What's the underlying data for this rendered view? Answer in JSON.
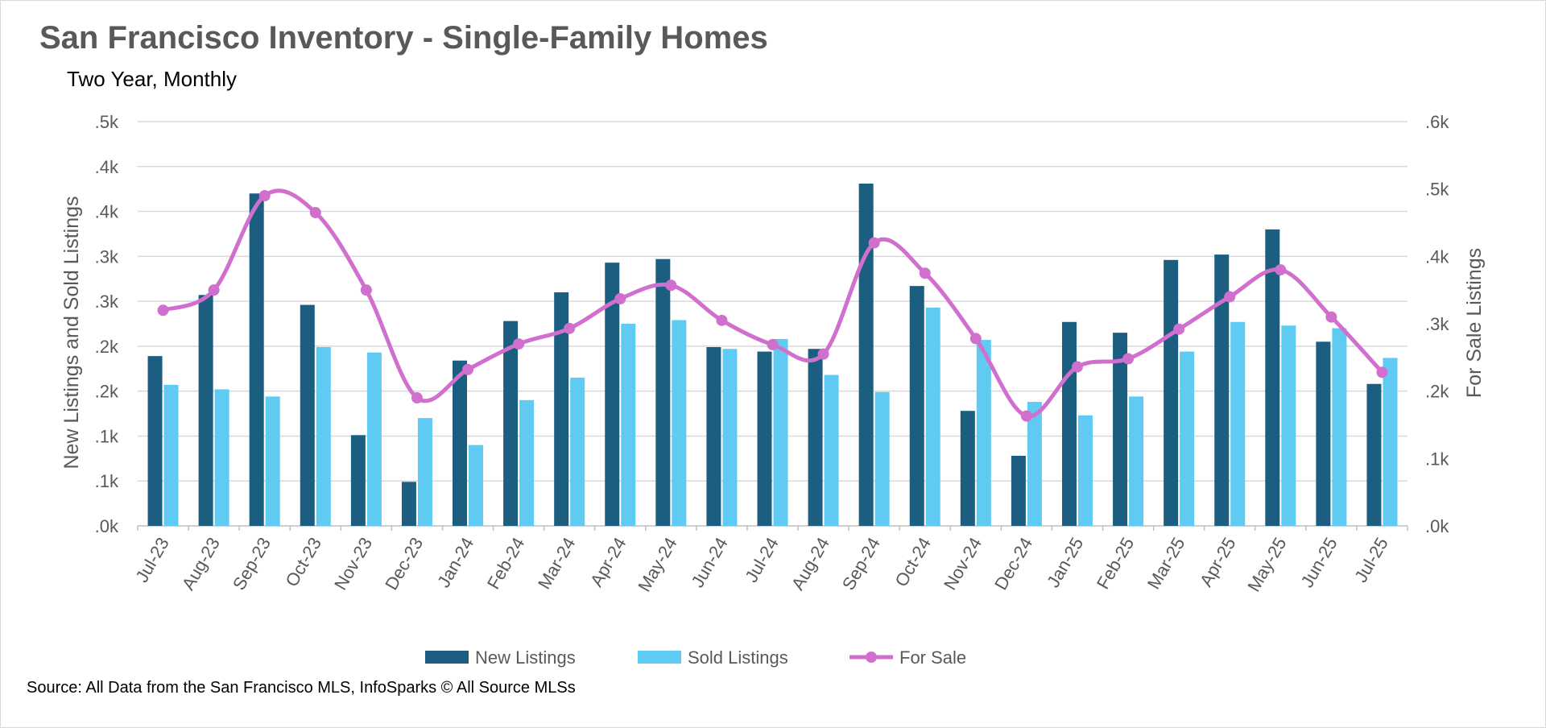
{
  "chart_data": {
    "type": "bar",
    "title": "San Francisco Inventory - Single-Family Homes",
    "subtitle": "Two Year, Monthly",
    "source": "Source: All Data from the San Francisco MLS, InfoSparks © All Source MLSs",
    "categories": [
      "Jul-23",
      "Aug-23",
      "Sep-23",
      "Oct-23",
      "Nov-23",
      "Dec-23",
      "Jan-24",
      "Feb-24",
      "Mar-24",
      "Apr-24",
      "May-24",
      "Jun-24",
      "Jul-24",
      "Aug-24",
      "Sep-24",
      "Oct-24",
      "Nov-24",
      "Dec-24",
      "Jan-25",
      "Feb-25",
      "Mar-25",
      "Apr-25",
      "May-25",
      "Jun-25",
      "Jul-25"
    ],
    "y_left": {
      "label": "New Listings and Sold Listings",
      "range": [
        0,
        450
      ],
      "ticks": [
        0,
        50,
        100,
        150,
        200,
        250,
        300,
        350,
        400,
        450
      ],
      "tick_labels": [
        ".0k",
        ".1k",
        ".1k",
        ".2k",
        ".2k",
        ".3k",
        ".3k",
        ".4k",
        ".4k",
        ".5k"
      ]
    },
    "y_right": {
      "label": "For Sale Listings",
      "range": [
        0,
        600
      ],
      "ticks": [
        0,
        100,
        200,
        300,
        400,
        500,
        600
      ],
      "tick_labels": [
        ".0k",
        ".1k",
        ".2k",
        ".3k",
        ".4k",
        ".5k",
        ".6k"
      ]
    },
    "grid": true,
    "legend_position": "bottom",
    "series": [
      {
        "name": "New Listings",
        "type": "bar",
        "axis": "left",
        "color": "#1b5e80",
        "values": [
          189,
          257,
          370,
          246,
          101,
          49,
          184,
          228,
          260,
          293,
          297,
          199,
          194,
          197,
          381,
          267,
          128,
          78,
          227,
          215,
          296,
          302,
          330,
          205,
          158
        ]
      },
      {
        "name": "Sold Listings",
        "type": "bar",
        "axis": "left",
        "color": "#5fcbf3",
        "values": [
          157,
          152,
          144,
          199,
          193,
          120,
          90,
          140,
          165,
          225,
          229,
          197,
          208,
          168,
          149,
          243,
          207,
          138,
          123,
          144,
          194,
          227,
          223,
          220,
          187
        ]
      },
      {
        "name": "For Sale",
        "type": "line",
        "axis": "right",
        "color": "#d16fcf",
        "smooth": true,
        "marker": "circle",
        "values": [
          320,
          350,
          490,
          465,
          350,
          190,
          232,
          270,
          293,
          337,
          357,
          305,
          269,
          255,
          420,
          375,
          278,
          163,
          236,
          248,
          292,
          340,
          380,
          310,
          228
        ]
      }
    ]
  }
}
